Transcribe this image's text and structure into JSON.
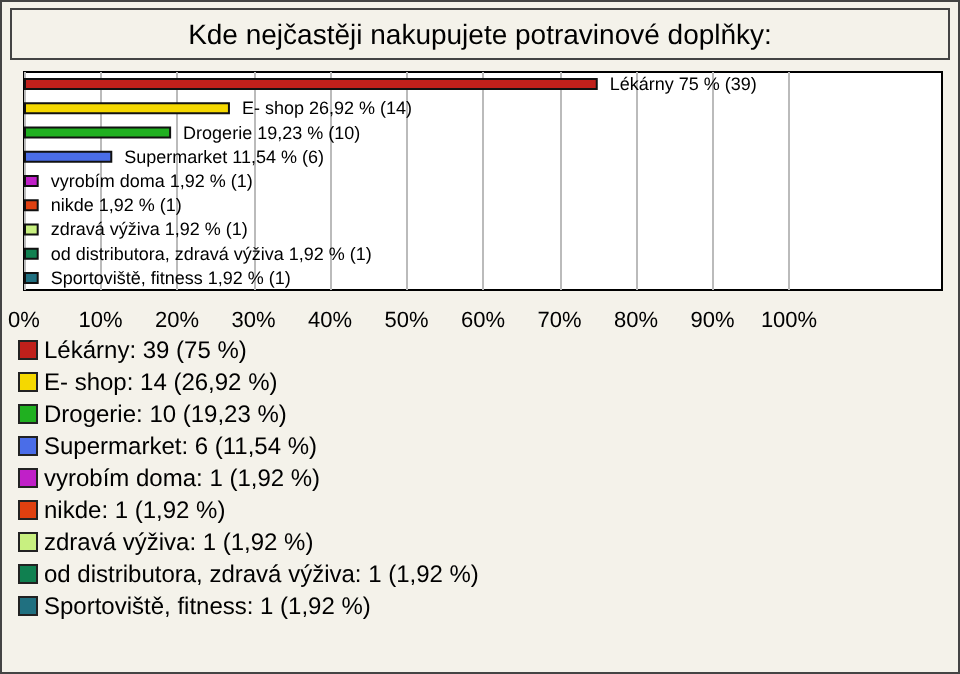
{
  "chart_data": {
    "type": "bar",
    "orientation": "horizontal",
    "title": "Kde nejčastěji nakupujete potravinové doplňky:",
    "categories": [
      "Lékárny",
      "E- shop",
      "Drogerie",
      "Supermarket",
      "vyrobím doma",
      "nikde",
      "zdravá výživa",
      "od distributora, zdravá výživa",
      "Sportoviště, fitness"
    ],
    "values": [
      75,
      26.92,
      19.23,
      11.54,
      1.92,
      1.92,
      1.92,
      1.92,
      1.92
    ],
    "value_labels": [
      "75 % (39)",
      "26,92 % (14)",
      "19,23 % (10)",
      "11,54 % (6)",
      "1,92 % (1)",
      "1,92 % (1)",
      "1,92 % (1)",
      "1,92 % (1)",
      "1,92 % (1)"
    ],
    "colors": [
      "#c0201b",
      "#f5d800",
      "#20b020",
      "#4a6de8",
      "#c020c8",
      "#e04010",
      "#c8f080",
      "#108050",
      "#207080"
    ],
    "xlim": [
      0,
      120
    ],
    "xticks": [
      {
        "value": 0,
        "label": "0%"
      },
      {
        "value": 10,
        "label": "10%"
      },
      {
        "value": 20,
        "label": "20%"
      },
      {
        "value": 30,
        "label": "30%"
      },
      {
        "value": 40,
        "label": "40%"
      },
      {
        "value": 50,
        "label": "50%"
      },
      {
        "value": 60,
        "label": "60%"
      },
      {
        "value": 70,
        "label": "70%"
      },
      {
        "value": 80,
        "label": "80%"
      },
      {
        "value": 90,
        "label": "90%"
      },
      {
        "value": 100,
        "label": "100%"
      }
    ],
    "grid": "x",
    "annotations": [
      "Lékárny: 39 (75 %)",
      "E- shop: 14 (26,92 %)",
      "Drogerie: 10 (19,23 %)",
      "Supermarket: 6 (11,54 %)",
      "vyrobím doma: 1 (1,92 %)",
      "nikde: 1 (1,92 %)",
      "zdravá výživa: 1 (1,92 %)",
      "od distributora, zdravá výživa: 1 (1,92 %)",
      "Sportoviště, fitness: 1 (1,92 %)"
    ]
  }
}
